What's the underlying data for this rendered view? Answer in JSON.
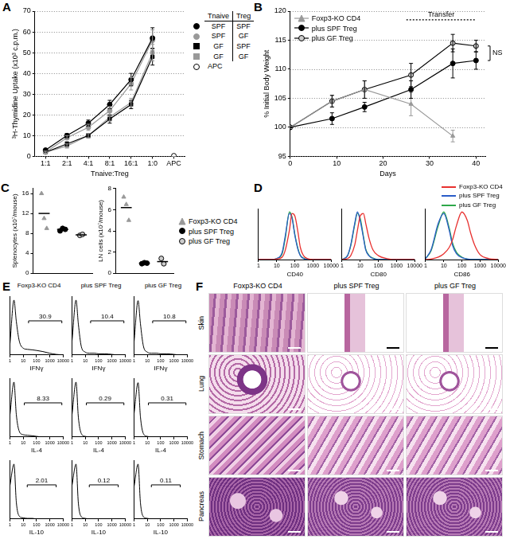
{
  "chart_data": [
    {
      "panel": "A",
      "type": "line",
      "x_label": "Tnaive:Treg",
      "y_label": "³H-Thymidine Uptake (x10³ c.p.m.)",
      "categories": [
        "1:1",
        "2:1",
        "4:1",
        "8:1",
        "16:1",
        "1:0",
        "APC"
      ],
      "ylim": [
        0,
        70
      ],
      "yticks": [
        0,
        10,
        20,
        30,
        40,
        50,
        60,
        70
      ],
      "grid": true,
      "legend": "right",
      "legend_header": [
        "Tnaive",
        "Treg"
      ],
      "series": [
        {
          "tnaive": "SPF",
          "treg": "SPF",
          "color": "#000000",
          "marker": "circle",
          "values": [
            3,
            10,
            16,
            25,
            37,
            57,
            null
          ],
          "errors": [
            0.5,
            1,
            1.5,
            2,
            3,
            5,
            null
          ]
        },
        {
          "tnaive": "SPF",
          "treg": "GF",
          "color": "#999999",
          "marker": "circle",
          "values": [
            2,
            9,
            14,
            22,
            35,
            56,
            null
          ],
          "errors": [
            0.5,
            1,
            1.5,
            2,
            3,
            5,
            null
          ]
        },
        {
          "tnaive": "GF",
          "treg": "SPF",
          "color": "#000000",
          "marker": "square",
          "values": [
            2,
            6,
            10,
            18,
            25,
            48,
            null
          ],
          "errors": [
            0.5,
            1,
            1,
            2,
            2,
            4,
            null
          ]
        },
        {
          "tnaive": "GF",
          "treg": "GF",
          "color": "#999999",
          "marker": "square",
          "values": [
            2,
            5,
            10,
            19,
            26,
            50,
            null
          ],
          "errors": [
            0.5,
            1,
            1,
            2,
            2,
            4,
            null
          ]
        },
        {
          "name": "APC",
          "color": "#ffffff",
          "marker": "circle",
          "values": [
            null,
            null,
            null,
            null,
            null,
            null,
            0.3
          ]
        }
      ]
    },
    {
      "panel": "B",
      "type": "line",
      "x_label": "Days",
      "y_label": "% Initial Body Weight",
      "x": [
        0,
        9,
        16,
        26,
        35,
        40
      ],
      "xlim": [
        0,
        42
      ],
      "xticks": [
        0,
        10,
        20,
        30,
        40
      ],
      "ylim": [
        95,
        120
      ],
      "yticks": [
        95,
        100,
        105,
        110,
        115,
        120
      ],
      "grid": true,
      "legend": "upper left",
      "annotations": [
        {
          "text": "Transfer",
          "x_range": [
            25,
            40
          ],
          "y": 118.5
        },
        {
          "text": "NS",
          "y_range": [
            111.5,
            114
          ]
        }
      ],
      "series": [
        {
          "name": "Foxp3-KO CD4",
          "color": "#999999",
          "marker": "triangle",
          "values": [
            100,
            104.5,
            106.5,
            104,
            98.5,
            null
          ],
          "errors": [
            0,
            1,
            1.5,
            2,
            1,
            null
          ]
        },
        {
          "name": "plus SPF Treg",
          "color": "#000000",
          "marker": "circle",
          "values": [
            100,
            101.5,
            103.5,
            106.5,
            111,
            111.5
          ],
          "errors": [
            0,
            1,
            0.8,
            1.5,
            2.5,
            1.5
          ]
        },
        {
          "name": "plus GF Treg",
          "color": "#cccccc",
          "marker": "circle",
          "values": [
            100,
            104.5,
            106.5,
            109,
            114.5,
            114
          ],
          "errors": [
            0,
            1,
            1.5,
            2,
            1.5,
            1
          ]
        }
      ]
    },
    {
      "panel": "C",
      "type": "scatter",
      "y_label": "Splenocytes (x10⁷/mouse)",
      "ylim": [
        0,
        17
      ],
      "yticks": [
        0,
        4,
        8,
        12,
        16
      ],
      "tick_labels": "y",
      "series": [
        {
          "color": "#999999",
          "marker": "triangle",
          "values": [
            16,
            11,
            9
          ],
          "mean": 12
        },
        {
          "color": "#000000",
          "marker": "circle",
          "values": [
            8.5,
            9,
            8.8
          ],
          "mean": 8.8
        },
        {
          "color": "#cccccc",
          "marker": "circle",
          "values": [
            7.6,
            7.8
          ],
          "mean": 7.7
        }
      ]
    },
    {
      "type": "scatter",
      "y_label": "LN cells (x10⁷/mouse)",
      "ylim": [
        0,
        8
      ],
      "yticks": [
        0,
        2,
        4,
        6,
        8
      ],
      "tick_labels": "y",
      "legend": "right",
      "series": [
        {
          "name": "Foxp3-KO CD4",
          "color": "#999999",
          "marker": "triangle",
          "values": [
            7.2,
            6.5,
            5
          ],
          "mean": 6.2
        },
        {
          "name": "plus SPF Treg",
          "color": "#000000",
          "marker": "circle",
          "values": [
            0.9,
            1,
            0.95
          ],
          "mean": 0.95
        },
        {
          "name": "plus GF Treg",
          "color": "#cccccc",
          "marker": "circle",
          "values": [
            1.4,
            0.9
          ],
          "mean": 1.1
        }
      ]
    },
    {
      "panel": "D",
      "type": "line",
      "log": "x",
      "x_label": "CD40",
      "x": [
        1,
        5,
        10,
        20,
        30,
        50,
        70,
        100,
        150,
        200,
        300,
        500,
        1000,
        10000
      ],
      "xlim": [
        1,
        10000
      ],
      "xticks": [
        1,
        10,
        100,
        1000,
        10000
      ],
      "ylim": [
        0,
        105
      ],
      "tick_labels": "x",
      "series": [
        {
          "color": "#e8312f",
          "values": [
            0,
            0,
            1,
            5,
            20,
            60,
            95,
            90,
            55,
            25,
            8,
            2,
            0,
            0
          ]
        },
        {
          "color": "#2a5cc8",
          "values": [
            0,
            0,
            2,
            15,
            50,
            95,
            85,
            50,
            20,
            8,
            2,
            0,
            0,
            0
          ]
        },
        {
          "color": "#2ea84a",
          "values": [
            0,
            0,
            2,
            12,
            45,
            98,
            88,
            52,
            22,
            9,
            3,
            0,
            0,
            0
          ]
        }
      ]
    },
    {
      "type": "line",
      "log": "x",
      "x_label": "CD80",
      "x": [
        1,
        2,
        3,
        5,
        7,
        10,
        15,
        20,
        30,
        50,
        100,
        300,
        1000,
        10000
      ],
      "xlim": [
        1,
        10000
      ],
      "xticks": [
        1,
        10,
        100,
        1000,
        10000
      ],
      "ylim": [
        0,
        105
      ],
      "tick_labels": "x",
      "series": [
        {
          "color": "#e8312f",
          "values": [
            0,
            2,
            8,
            30,
            60,
            90,
            95,
            75,
            45,
            20,
            8,
            2,
            0,
            0
          ]
        },
        {
          "color": "#2a5cc8",
          "values": [
            0,
            8,
            30,
            75,
            98,
            80,
            45,
            20,
            8,
            2,
            0,
            0,
            0,
            0
          ]
        },
        {
          "color": "#2ea84a",
          "values": [
            0,
            8,
            28,
            72,
            95,
            85,
            48,
            22,
            9,
            3,
            0,
            0,
            0,
            0
          ]
        }
      ]
    },
    {
      "type": "line",
      "log": "x",
      "x_label": "CD86",
      "x": [
        1,
        2,
        5,
        10,
        20,
        30,
        50,
        100,
        200,
        300,
        500,
        1000,
        3000,
        10000
      ],
      "xlim": [
        1,
        10000
      ],
      "xticks": [
        1,
        10,
        100,
        1000,
        10000
      ],
      "ylim": [
        0,
        105
      ],
      "tick_labels": "x",
      "legend": "upper right",
      "series": [
        {
          "name": "Foxp3-KO CD4",
          "color": "#e8312f",
          "values": [
            0,
            1,
            5,
            12,
            25,
            40,
            70,
            98,
            80,
            55,
            30,
            10,
            2,
            0
          ]
        },
        {
          "name": "plus SPF Treg",
          "color": "#2a5cc8",
          "values": [
            2,
            20,
            75,
            95,
            60,
            30,
            12,
            4,
            1,
            0,
            0,
            0,
            0,
            0
          ]
        },
        {
          "name": "plus GF Treg",
          "color": "#2ea84a",
          "values": [
            2,
            18,
            70,
            98,
            65,
            35,
            15,
            5,
            1,
            0,
            0,
            0,
            0,
            0
          ]
        }
      ]
    },
    {
      "panel": "E",
      "title": "Foxp3-KO CD4",
      "type": "line",
      "log": "x",
      "x_label": "IFNγ",
      "x": [
        1,
        2,
        3,
        5,
        10,
        20,
        50,
        100,
        300,
        1000,
        3000,
        10000
      ],
      "xlim": [
        1,
        10000
      ],
      "xticks": [
        1,
        10,
        100,
        1000,
        10000
      ],
      "ylim": [
        0,
        105
      ],
      "tick_labels": "x",
      "gate": {
        "range": [
          25,
          8000
        ],
        "value": 30.9
      },
      "series": [
        {
          "color": "#000000",
          "values": [
            20,
            98,
            60,
            25,
            12,
            10,
            9,
            8,
            6,
            3,
            1,
            0
          ]
        }
      ]
    },
    {
      "title": "plus SPF Treg",
      "type": "line",
      "log": "x",
      "x_label": "IFNγ",
      "x": [
        1,
        2,
        3,
        5,
        10,
        20,
        50,
        100,
        300,
        1000,
        3000,
        10000
      ],
      "xlim": [
        1,
        10000
      ],
      "xticks": [
        1,
        10,
        100,
        1000,
        10000
      ],
      "ylim": [
        0,
        105
      ],
      "tick_labels": "x",
      "gate": {
        "range": [
          25,
          8000
        ],
        "value": 10.4
      },
      "series": [
        {
          "color": "#000000",
          "values": [
            25,
            98,
            55,
            15,
            5,
            3,
            3,
            2,
            2,
            1,
            0,
            0
          ]
        }
      ]
    },
    {
      "title": "plus GF Treg",
      "type": "line",
      "log": "x",
      "x_label": "IFNγ",
      "x": [
        1,
        2,
        3,
        5,
        10,
        20,
        50,
        100,
        300,
        1000,
        3000,
        10000
      ],
      "xlim": [
        1,
        10000
      ],
      "xticks": [
        1,
        10,
        100,
        1000,
        10000
      ],
      "ylim": [
        0,
        105
      ],
      "tick_labels": "x",
      "gate": {
        "range": [
          25,
          8000
        ],
        "value": 10.8
      },
      "series": [
        {
          "color": "#000000",
          "values": [
            24,
            97,
            56,
            16,
            5,
            3,
            3,
            2,
            2,
            1,
            0,
            0
          ]
        }
      ]
    },
    {
      "type": "line",
      "log": "x",
      "x_label": "IL-4",
      "x": [
        1,
        2,
        3,
        5,
        10,
        20,
        50,
        100,
        300,
        1000,
        3000,
        10000
      ],
      "xlim": [
        1,
        10000
      ],
      "xticks": [
        1,
        10,
        100,
        1000,
        10000
      ],
      "ylim": [
        0,
        105
      ],
      "tick_labels": "x",
      "gate": {
        "range": [
          12,
          8000
        ],
        "value": 8.33
      },
      "series": [
        {
          "color": "#000000",
          "values": [
            40,
            98,
            40,
            10,
            4,
            3,
            2,
            1,
            0,
            0,
            0,
            0
          ]
        }
      ]
    },
    {
      "type": "line",
      "log": "x",
      "x_label": "IL-4",
      "x": [
        1,
        2,
        3,
        5,
        10,
        20,
        50,
        100,
        300,
        1000,
        3000,
        10000
      ],
      "xlim": [
        1,
        10000
      ],
      "xticks": [
        1,
        10,
        100,
        1000,
        10000
      ],
      "ylim": [
        0,
        105
      ],
      "tick_labels": "x",
      "gate": {
        "range": [
          12,
          8000
        ],
        "value": 0.29
      },
      "series": [
        {
          "color": "#000000",
          "values": [
            40,
            98,
            35,
            6,
            1,
            0,
            0,
            0,
            0,
            0,
            0,
            0
          ]
        }
      ]
    },
    {
      "type": "line",
      "log": "x",
      "x_label": "IL-4",
      "x": [
        1,
        2,
        3,
        5,
        10,
        20,
        50,
        100,
        300,
        1000,
        3000,
        10000
      ],
      "xlim": [
        1,
        10000
      ],
      "xticks": [
        1,
        10,
        100,
        1000,
        10000
      ],
      "ylim": [
        0,
        105
      ],
      "tick_labels": "x",
      "gate": {
        "range": [
          12,
          8000
        ],
        "value": 0.31
      },
      "series": [
        {
          "color": "#000000",
          "values": [
            42,
            97,
            36,
            6,
            1,
            0,
            0,
            0,
            0,
            0,
            0,
            0
          ]
        }
      ]
    },
    {
      "type": "line",
      "log": "x",
      "x_label": "IL-10",
      "x": [
        1,
        2,
        3,
        5,
        10,
        20,
        50,
        100,
        300,
        1000,
        3000,
        10000
      ],
      "xlim": [
        1,
        10000
      ],
      "xticks": [
        1,
        10,
        100,
        1000,
        10000
      ],
      "ylim": [
        0,
        105
      ],
      "tick_labels": "x",
      "gate": {
        "range": [
          20,
          3000
        ],
        "value": 2.01
      },
      "series": [
        {
          "color": "#000000",
          "values": [
            60,
            98,
            30,
            5,
            2,
            1,
            1,
            0,
            0,
            0,
            0,
            0
          ]
        }
      ]
    },
    {
      "type": "line",
      "log": "x",
      "x_label": "IL-10",
      "x": [
        1,
        2,
        3,
        5,
        10,
        20,
        50,
        100,
        300,
        1000,
        3000,
        10000
      ],
      "xlim": [
        1,
        10000
      ],
      "xticks": [
        1,
        10,
        100,
        1000,
        10000
      ],
      "ylim": [
        0,
        105
      ],
      "tick_labels": "x",
      "gate": {
        "range": [
          20,
          3000
        ],
        "value": 0.12
      },
      "series": [
        {
          "color": "#000000",
          "values": [
            60,
            98,
            28,
            4,
            1,
            0,
            0,
            0,
            0,
            0,
            0,
            0
          ]
        }
      ]
    },
    {
      "type": "line",
      "log": "x",
      "x_label": "IL-10",
      "x": [
        1,
        2,
        3,
        5,
        10,
        20,
        50,
        100,
        300,
        1000,
        3000,
        10000
      ],
      "xlim": [
        1,
        10000
      ],
      "xticks": [
        1,
        10,
        100,
        1000,
        10000
      ],
      "ylim": [
        0,
        105
      ],
      "tick_labels": "x",
      "gate": {
        "range": [
          20,
          3000
        ],
        "value": 0.11
      },
      "series": [
        {
          "color": "#000000",
          "values": [
            58,
            98,
            29,
            4,
            1,
            0,
            0,
            0,
            0,
            0,
            0,
            0
          ]
        }
      ]
    }
  ],
  "histology": {
    "panel": "F",
    "columns": [
      "Foxp3-KO CD4",
      "plus SPF Treg",
      "plus GF Treg"
    ],
    "rows": [
      "Skin",
      "Lung",
      "Stomach",
      "Pancreas"
    ]
  }
}
